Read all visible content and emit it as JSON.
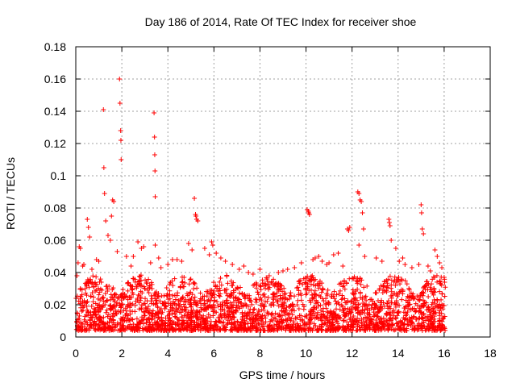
{
  "chart_data": {
    "type": "scatter",
    "title": "Day 186 of 2014, Rate Of TEC Index for receiver shoe",
    "xlabel": "GPS time / hours",
    "ylabel": "ROTI / TECUs",
    "xlim": [
      0,
      18
    ],
    "ylim": [
      0,
      0.18
    ],
    "xticks": [
      0,
      2,
      4,
      6,
      8,
      10,
      12,
      14,
      16,
      18
    ],
    "xtick_labels": [
      "0",
      "2",
      "4",
      "6",
      "8",
      "10",
      "12",
      "14",
      "16",
      "18"
    ],
    "yticks": [
      0,
      0.02,
      0.04,
      0.06,
      0.08,
      0.1,
      0.12,
      0.14,
      0.16,
      0.18
    ],
    "ytick_labels": [
      "0",
      "0.02",
      "0.04",
      "0.06",
      "0.08",
      "0.1",
      "0.12",
      "0.14",
      "0.16",
      "0.18"
    ],
    "grid": true,
    "marker": "+",
    "color": "#ff0000",
    "series": [
      {
        "name": "ROTI",
        "x": [
          1.2,
          1.9,
          1.92,
          1.95,
          1.96,
          1.97,
          3.4,
          3.42,
          3.43,
          3.44,
          3.45,
          1.22,
          1.25,
          1.3,
          1.6,
          1.65,
          1.55,
          1.4,
          1.5,
          2.95,
          0.5,
          0.15,
          0.2,
          0.55,
          0.6,
          2.7,
          2.85,
          3.45,
          3.7,
          4.2,
          4.9,
          5.05,
          5.15,
          5.2,
          5.22,
          5.25,
          5.3,
          5.8,
          5.9,
          5.95,
          6.3,
          6.5,
          7.1,
          7.5,
          8.0,
          9.2,
          10.05,
          10.1,
          10.12,
          10.15,
          10.55,
          10.9,
          11.4,
          11.8,
          11.85,
          11.9,
          12.25,
          12.3,
          12.35,
          12.4,
          12.45,
          12.5,
          12.3,
          13.6,
          13.62,
          13.65,
          13.7,
          14.05,
          14.2,
          14.3,
          15.0,
          15.02,
          15.05,
          15.1,
          15.4,
          15.6,
          15.7,
          15.8,
          15.9,
          12.55,
          13.05,
          10.3,
          11.2,
          9.8,
          4.6,
          3.25,
          2.4,
          2.2,
          0.9,
          0.35,
          0.1,
          0.05,
          0.3,
          0.7,
          1.0,
          1.8,
          2.5,
          3.6,
          4.0,
          4.4,
          5.6,
          6.1,
          6.8,
          7.3,
          7.7,
          8.4,
          8.8,
          9.0,
          9.5,
          10.4,
          10.7,
          11.0,
          11.6,
          13.3,
          13.9,
          14.6,
          14.9,
          15.3,
          16.0,
          16.02
        ],
        "y": [
          0.141,
          0.16,
          0.145,
          0.128,
          0.122,
          0.11,
          0.139,
          0.124,
          0.113,
          0.103,
          0.087,
          0.105,
          0.089,
          0.072,
          0.085,
          0.084,
          0.075,
          0.063,
          0.06,
          0.056,
          0.073,
          0.056,
          0.055,
          0.068,
          0.062,
          0.059,
          0.055,
          0.057,
          0.043,
          0.048,
          0.058,
          0.054,
          0.086,
          0.076,
          0.075,
          0.073,
          0.072,
          0.051,
          0.059,
          0.057,
          0.049,
          0.047,
          0.042,
          0.04,
          0.042,
          0.042,
          0.079,
          0.078,
          0.077,
          0.076,
          0.05,
          0.045,
          0.052,
          0.067,
          0.066,
          0.068,
          0.09,
          0.089,
          0.085,
          0.084,
          0.077,
          0.067,
          0.057,
          0.073,
          0.071,
          0.069,
          0.06,
          0.047,
          0.049,
          0.045,
          0.082,
          0.077,
          0.067,
          0.064,
          0.041,
          0.054,
          0.05,
          0.046,
          0.043,
          0.05,
          0.049,
          0.048,
          0.051,
          0.046,
          0.047,
          0.046,
          0.044,
          0.05,
          0.048,
          0.045,
          0.046,
          0.038,
          0.044,
          0.042,
          0.047,
          0.053,
          0.05,
          0.049,
          0.045,
          0.048,
          0.055,
          0.052,
          0.045,
          0.044,
          0.039,
          0.038,
          0.04,
          0.041,
          0.043,
          0.049,
          0.047,
          0.046,
          0.044,
          0.047,
          0.055,
          0.043,
          0.045,
          0.044,
          0.037,
          0.034
        ]
      }
    ],
    "dense_band": {
      "x_range": [
        0,
        16.05
      ],
      "y_floor": 0.004,
      "y_typical_max": 0.035,
      "description_note": "dense cluster of ROTI points between about 0.005 and 0.035"
    }
  }
}
